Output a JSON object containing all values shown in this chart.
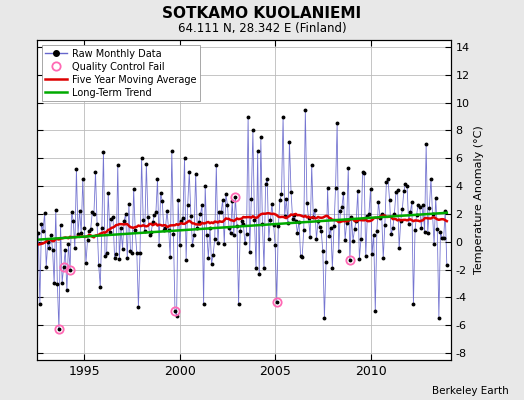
{
  "title": "SOTKAMO KUOLANIEMI",
  "subtitle": "64.111 N, 28.342 E (Finland)",
  "ylabel": "Temperature Anomaly (°C)",
  "attribution": "Berkeley Earth",
  "ylim": [
    -8.5,
    14.5
  ],
  "xlim": [
    1992.5,
    2014.2
  ],
  "yticks": [
    -8,
    -6,
    -4,
    -2,
    0,
    2,
    4,
    6,
    8,
    10,
    12,
    14
  ],
  "xticks": [
    1995,
    2000,
    2005,
    2010
  ],
  "background_color": "#e8e8e8",
  "plot_background": "#ffffff",
  "raw_line_color": "#6666cc",
  "raw_marker_color": "#000000",
  "qc_fail_color": "#ff69b4",
  "moving_avg_color": "#dd0000",
  "trend_color": "#00aa00",
  "seed": 17
}
